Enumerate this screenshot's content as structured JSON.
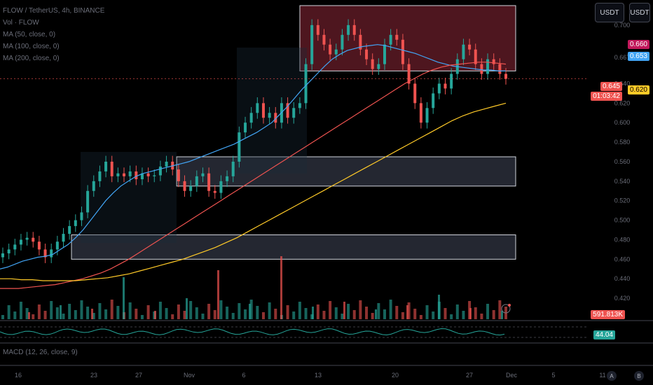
{
  "header": {
    "symbol_line": "FLOW / TetherUS, 4h, BINANCE",
    "vol_line": "Vol · FLOW",
    "ma_lines": [
      "MA (50, close, 0)",
      "MA (100, close, 0)",
      "MA (200, close, 0)"
    ],
    "macd_line": "MACD (12, 26, close, 9)"
  },
  "currency_buttons": [
    "USDT",
    "USDT"
  ],
  "price_tags": {
    "ma_red": "0.660",
    "ma_blue": "0.653",
    "last_price": "0.645",
    "countdown": "01:03:42",
    "ma_yellow": "0.620",
    "volume": "591.813K",
    "rsi": "44.04"
  },
  "bottom_buttons": [
    "A",
    "B"
  ],
  "colors": {
    "up": "#26a69a",
    "down": "#ef5350",
    "ma50": "#42a5f5",
    "ma100": "#ef5350",
    "ma200": "#ffca28",
    "zone_fill": "#2a2e39",
    "zone_top_fill": "#5c1a24",
    "rsi": "#26a69a"
  },
  "chart_data": {
    "type": "candlestick",
    "y_axis_ticks": [
      "0.700",
      "0.667",
      "0.640",
      "0.620",
      "0.600",
      "0.580",
      "0.560",
      "0.540",
      "0.520",
      "0.500",
      "0.480",
      "0.460",
      "0.440",
      "0.420"
    ],
    "ylim": [
      0.41,
      0.72
    ],
    "x_axis_ticks": [
      "16",
      "23",
      "27",
      "Nov",
      "6",
      "13",
      "20",
      "27",
      "Dec",
      "5",
      "11"
    ],
    "closes": [
      0.466,
      0.47,
      0.475,
      0.48,
      0.482,
      0.478,
      0.47,
      0.462,
      0.47,
      0.478,
      0.486,
      0.494,
      0.5,
      0.508,
      0.53,
      0.54,
      0.55,
      0.56,
      0.545,
      0.548,
      0.545,
      0.55,
      0.542,
      0.548,
      0.545,
      0.546,
      0.555,
      0.56,
      0.552,
      0.54,
      0.53,
      0.535,
      0.545,
      0.548,
      0.53,
      0.528,
      0.54,
      0.545,
      0.56,
      0.59,
      0.6,
      0.61,
      0.62,
      0.605,
      0.61,
      0.6,
      0.62,
      0.605,
      0.615,
      0.62,
      0.66,
      0.7,
      0.69,
      0.68,
      0.67,
      0.675,
      0.69,
      0.7,
      0.69,
      0.675,
      0.665,
      0.655,
      0.66,
      0.68,
      0.69,
      0.685,
      0.66,
      0.64,
      0.62,
      0.6,
      0.615,
      0.63,
      0.64,
      0.635,
      0.65,
      0.665,
      0.68,
      0.675,
      0.66,
      0.65,
      0.665,
      0.66,
      0.65,
      0.645
    ],
    "ma50": [
      0.45,
      0.452,
      0.455,
      0.458,
      0.46,
      0.462,
      0.463,
      0.465,
      0.47,
      0.475,
      0.482,
      0.49,
      0.5,
      0.51,
      0.52,
      0.528,
      0.535,
      0.54,
      0.545,
      0.548,
      0.55,
      0.552,
      0.554,
      0.556,
      0.558,
      0.56,
      0.563,
      0.566,
      0.569,
      0.572,
      0.575,
      0.578,
      0.582,
      0.586,
      0.59,
      0.595,
      0.6,
      0.608,
      0.616,
      0.625,
      0.634,
      0.642,
      0.65,
      0.658,
      0.665,
      0.67,
      0.674,
      0.676,
      0.678,
      0.679,
      0.68,
      0.679,
      0.677,
      0.675,
      0.673,
      0.671,
      0.668,
      0.665,
      0.662,
      0.66,
      0.658,
      0.657,
      0.656,
      0.655,
      0.654,
      0.654,
      0.653,
      0.653
    ],
    "ma100": [
      0.43,
      0.43,
      0.43,
      0.431,
      0.432,
      0.433,
      0.434,
      0.436,
      0.438,
      0.44,
      0.443,
      0.446,
      0.45,
      0.455,
      0.46,
      0.466,
      0.472,
      0.478,
      0.484,
      0.49,
      0.496,
      0.502,
      0.508,
      0.514,
      0.52,
      0.526,
      0.532,
      0.538,
      0.544,
      0.55,
      0.556,
      0.562,
      0.568,
      0.574,
      0.58,
      0.586,
      0.592,
      0.598,
      0.604,
      0.61,
      0.616,
      0.622,
      0.628,
      0.634,
      0.64,
      0.645,
      0.65,
      0.654,
      0.657,
      0.659,
      0.66,
      0.661,
      0.662,
      0.662,
      0.661,
      0.66
    ],
    "ma200": [
      0.44,
      0.44,
      0.439,
      0.439,
      0.438,
      0.438,
      0.438,
      0.438,
      0.439,
      0.44,
      0.441,
      0.443,
      0.445,
      0.448,
      0.451,
      0.454,
      0.457,
      0.46,
      0.464,
      0.468,
      0.472,
      0.477,
      0.482,
      0.488,
      0.494,
      0.5,
      0.506,
      0.512,
      0.518,
      0.524,
      0.53,
      0.536,
      0.542,
      0.548,
      0.554,
      0.56,
      0.566,
      0.572,
      0.578,
      0.584,
      0.59,
      0.596,
      0.602,
      0.607,
      0.611,
      0.614,
      0.617,
      0.62
    ],
    "zones": [
      {
        "y_top": 0.72,
        "y_bottom": 0.653,
        "kind": "top"
      },
      {
        "y_top": 0.565,
        "y_bottom": 0.535,
        "kind": "mid"
      },
      {
        "y_top": 0.485,
        "y_bottom": 0.46,
        "kind": "mid"
      }
    ],
    "volume_spikes": [
      0.1,
      0.2,
      0.15,
      0.6,
      0.12,
      0.3,
      0.7,
      0.22,
      0.9,
      0.18,
      0.25,
      0.14,
      0.2,
      0.35,
      0.16,
      0.12
    ],
    "rsi_last": 44.04
  }
}
